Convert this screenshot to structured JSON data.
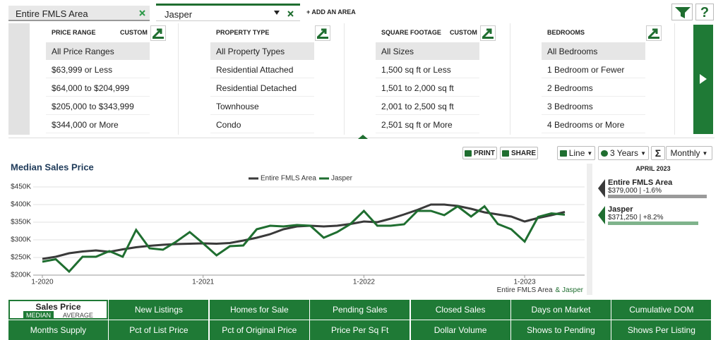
{
  "tabs": [
    {
      "label": "Entire FMLS Area"
    },
    {
      "label": "Jasper"
    }
  ],
  "add_area": "+ ADD AN AREA",
  "help": "?",
  "filters": [
    {
      "header": "PRICE RANGE",
      "custom": "CUSTOM",
      "items": [
        "All Price Ranges",
        "$63,999 or Less",
        "$64,000 to $204,999",
        "$205,000 to $343,999",
        "$344,000 or More"
      ]
    },
    {
      "header": "PROPERTY TYPE",
      "items": [
        "All Property Types",
        "Residential Attached",
        "Residential Detached",
        "Townhouse",
        "Condo"
      ]
    },
    {
      "header": "SQUARE FOOTAGE",
      "custom": "CUSTOM",
      "items": [
        "All Sizes",
        "1,500 sq ft or Less",
        "1,501 to 2,000 sq ft",
        "2,001 to 2,500 sq ft",
        "2,501 sq ft or More"
      ]
    },
    {
      "header": "BEDROOMS",
      "items": [
        "All Bedrooms",
        "1 Bedroom or Fewer",
        "2 Bedrooms",
        "3 Bedrooms",
        "4 Bedrooms or More"
      ]
    }
  ],
  "toolbar": {
    "print": "PRINT",
    "share": "SHARE",
    "chart_type": "Line",
    "period": "3 Years",
    "sigma": "Σ",
    "interval": "Monthly"
  },
  "chart_data": {
    "type": "line",
    "title": "Median Sales Price",
    "categories": [
      "1-2020",
      null,
      null,
      null,
      null,
      null,
      null,
      null,
      null,
      null,
      null,
      null,
      "1-2021",
      null,
      null,
      null,
      null,
      null,
      null,
      null,
      null,
      null,
      null,
      null,
      "1-2022",
      null,
      null,
      null,
      null,
      null,
      null,
      null,
      null,
      null,
      null,
      null,
      "1-2023",
      null,
      null,
      null
    ],
    "series": [
      {
        "name": "Entire FMLS Area",
        "color": "#3a3a3a",
        "values": [
          246000,
          252000,
          262000,
          267000,
          270000,
          266000,
          273000,
          279000,
          283000,
          286000,
          288000,
          289000,
          290000,
          289000,
          291000,
          298000,
          306000,
          316000,
          330000,
          338000,
          340000,
          338000,
          340000,
          345000,
          352000,
          350000,
          360000,
          372000,
          385000,
          400000,
          400000,
          396000,
          388000,
          378000,
          372000,
          366000,
          352000,
          362000,
          370000,
          379000
        ]
      },
      {
        "name": "Jasper",
        "color": "#1f6e30",
        "values": [
          238000,
          245000,
          210000,
          252000,
          252000,
          268000,
          252000,
          328000,
          276000,
          272000,
          295000,
          322000,
          290000,
          256000,
          282000,
          284000,
          330000,
          340000,
          338000,
          342000,
          340000,
          306000,
          322000,
          345000,
          382000,
          340000,
          340000,
          344000,
          382000,
          382000,
          370000,
          395000,
          366000,
          395000,
          345000,
          330000,
          295000,
          365000,
          375000,
          371250
        ]
      }
    ],
    "ylim": [
      200000,
      450000
    ],
    "yticks": [
      {
        "value": 200000,
        "label": "$200K"
      },
      {
        "value": 250000,
        "label": "$250K"
      },
      {
        "value": 300000,
        "label": "$300K"
      },
      {
        "value": 350000,
        "label": "$350K"
      },
      {
        "value": 400000,
        "label": "$400K"
      },
      {
        "value": 450000,
        "label": "$450K"
      }
    ],
    "grid": true,
    "legend": "top",
    "footnote": [
      "Entire FMLS Area",
      "& Jasper"
    ]
  },
  "sidebar": {
    "period": "APRIL 2023",
    "entries": [
      {
        "name": "Entire FMLS Area",
        "text": "$379,000 | -1.6%"
      },
      {
        "name": "Jasper",
        "text": "$371,250 | +8.2%"
      }
    ]
  },
  "metrics": {
    "selected": {
      "label": "Sales Price",
      "options": [
        "MEDIAN",
        "AVERAGE"
      ]
    },
    "buttons": [
      "New Listings",
      "Homes for Sale",
      "Pending Sales",
      "Closed Sales",
      "Days on Market",
      "Cumulative DOM",
      "Months Supply",
      "Pct of List Price",
      "Pct of Original Price",
      "Price Per Sq Ft",
      "Dollar Volume",
      "Shows to Pending",
      "Shows Per Listing"
    ]
  }
}
